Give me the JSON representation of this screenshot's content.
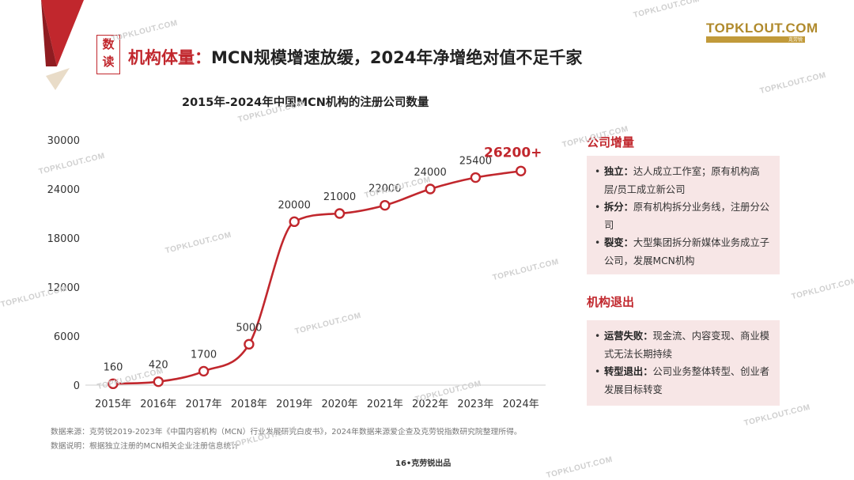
{
  "brand": {
    "logo": "TOPKLOUT.COM",
    "logo_sub": "克劳锐",
    "watermark": "TOPKLOUT.COM"
  },
  "tag": {
    "line1": "数",
    "line2": "读"
  },
  "page_title": {
    "highlight": "机构体量：",
    "text": "MCN规模增速放缓，2024年净增绝对值不足千家"
  },
  "colors": {
    "accent": "#c1272d",
    "panel_bg": "#f7e6e6",
    "gold": "#b08a2c"
  },
  "chart_data": {
    "type": "line",
    "title": "2015年-2024年中国MCN机构的注册公司数量",
    "categories": [
      "2015年",
      "2016年",
      "2017年",
      "2018年",
      "2019年",
      "2020年",
      "2021年",
      "2022年",
      "2023年",
      "2024年"
    ],
    "values": [
      160,
      420,
      1700,
      5000,
      20000,
      21000,
      22000,
      24000,
      25400,
      26200
    ],
    "data_labels": [
      "160",
      "420",
      "1700",
      "5000",
      "20000",
      "21000",
      "22000",
      "24000",
      "25400",
      "26200+"
    ],
    "yticks": [
      "0",
      "6000",
      "12000",
      "18000",
      "24000",
      "30000"
    ],
    "ylim": [
      0,
      30000
    ],
    "series_color": "#c1272d",
    "grid": false
  },
  "side": {
    "increase": {
      "heading": "公司增量",
      "items": [
        {
          "term": "独立：",
          "text": "达人成立工作室；原有机构高层/员工成立新公司"
        },
        {
          "term": "拆分：",
          "text": "原有机构拆分业务线，注册分公司"
        },
        {
          "term": "裂变：",
          "text": "大型集团拆分新媒体业务成立子公司，发展MCN机构"
        }
      ]
    },
    "exit": {
      "heading": "机构退出",
      "items": [
        {
          "term": "运营失败：",
          "text": "现金流、内容变现、商业模式无法长期持续"
        },
        {
          "term": "转型退出：",
          "text": "公司业务整体转型、创业者发展目标转变"
        }
      ]
    }
  },
  "footer": {
    "source": "数据来源：克劳锐2019-2023年《中国内容机构（MCN）行业发展研究白皮书》，2024年数据来源爱企查及克劳锐指数研究院整理所得。",
    "note": "数据说明：根据独立注册的MCN相关企业注册信息统计",
    "page": "16•克劳锐出品"
  }
}
